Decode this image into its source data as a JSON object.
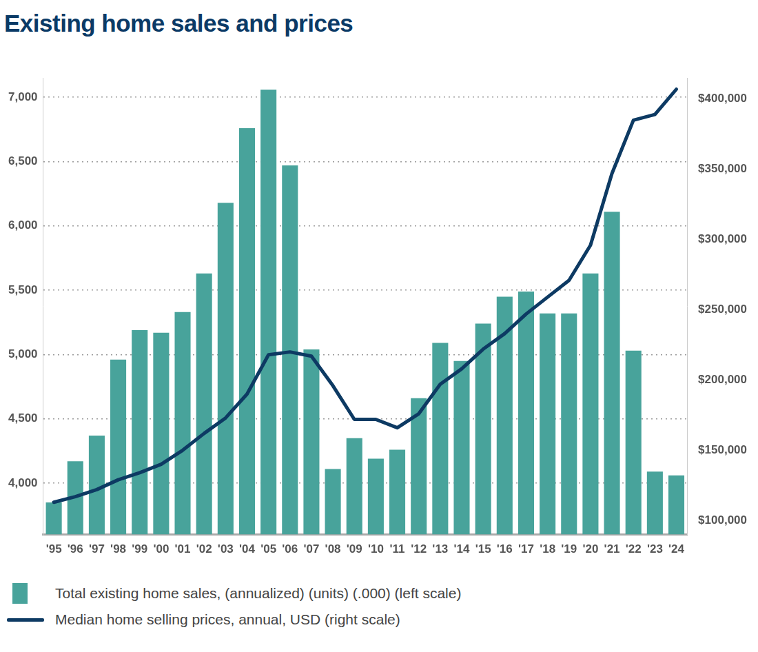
{
  "chart_data": {
    "type": "bar",
    "title": "Existing home sales and prices",
    "categories": [
      "'95",
      "'96",
      "'97",
      "'98",
      "'99",
      "'00",
      "'01",
      "'02",
      "'03",
      "'04",
      "'05",
      "'06",
      "'07",
      "'08",
      "'09",
      "'10",
      "'11",
      "'12",
      "'13",
      "'14",
      "'15",
      "'16",
      "'17",
      "'18",
      "'19",
      "'20",
      "'21",
      "'22",
      "'23",
      "'24"
    ],
    "series": [
      {
        "name": "Total existing home sales, (annualized) (units) (.000) (left scale)",
        "type": "bar",
        "color": "#48a39b",
        "values": [
          3850,
          4170,
          4370,
          4960,
          5190,
          5170,
          5330,
          5630,
          6180,
          6760,
          7060,
          6470,
          5040,
          4110,
          4350,
          4190,
          4260,
          4660,
          5090,
          4950,
          5240,
          5450,
          5490,
          5320,
          5320,
          5630,
          6110,
          5030,
          4090,
          4060
        ]
      },
      {
        "name": "Median home selling prices, annual, USD (right scale)",
        "type": "line",
        "axis": "y2",
        "color": "#0d3a63",
        "values": [
          113000,
          117000,
          122000,
          129000,
          134000,
          140000,
          150000,
          162000,
          173000,
          190000,
          218000,
          220000,
          217000,
          196000,
          172000,
          172000,
          166000,
          176000,
          197000,
          208000,
          222000,
          233000,
          247000,
          259000,
          271000,
          296000,
          347000,
          385000,
          389000,
          407000
        ]
      }
    ],
    "ylim": [
      3600,
      7150
    ],
    "yticks": [
      {
        "value": 4000,
        "label": "4,000"
      },
      {
        "value": 4500,
        "label": "4,500"
      },
      {
        "value": 5000,
        "label": "5,000"
      },
      {
        "value": 5500,
        "label": "5,500"
      },
      {
        "value": 6000,
        "label": "6,000"
      },
      {
        "value": 6500,
        "label": "6,500"
      },
      {
        "value": 7000,
        "label": "7,000"
      }
    ],
    "y2lim": [
      90000,
      415000
    ],
    "y2ticks": [
      {
        "value": 100000,
        "label": "$100,000"
      },
      {
        "value": 150000,
        "label": "$150,000"
      },
      {
        "value": 200000,
        "label": "$200,000"
      },
      {
        "value": 250000,
        "label": "$250,000"
      },
      {
        "value": 300000,
        "label": "$300,000"
      },
      {
        "value": 350000,
        "label": "$350,000"
      },
      {
        "value": 400000,
        "label": "$400,000"
      }
    ],
    "grid": true,
    "legend": "bottom"
  }
}
